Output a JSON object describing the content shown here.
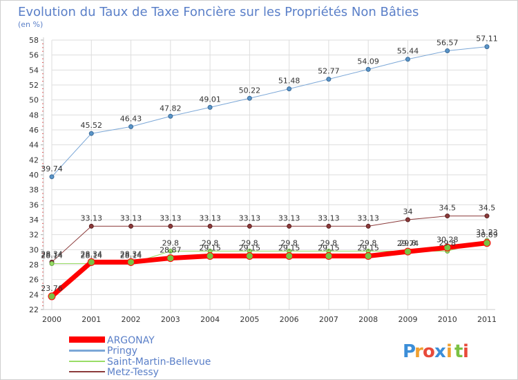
{
  "chart_data": {
    "type": "line",
    "title": "Evolution du Taux de Taxe Foncière sur les Propriétés Non Bâties",
    "subtitle": "(en %)",
    "xlabel": "",
    "ylabel": "",
    "ylim": [
      22,
      58
    ],
    "ytick_step": 2,
    "yticks": [
      "22",
      "24",
      "26",
      "28",
      "30",
      "32",
      "34",
      "36",
      "38",
      "40",
      "42",
      "44",
      "46",
      "48",
      "50",
      "52",
      "54",
      "56",
      "58"
    ],
    "categories": [
      "2000",
      "2001",
      "2002",
      "2003",
      "2004",
      "2005",
      "2006",
      "2007",
      "2008",
      "2009",
      "2010",
      "2011"
    ],
    "grid": true,
    "legend_position": "bottom-left",
    "series": [
      {
        "name": "ARGONAY",
        "color": "#ff0000",
        "values": [
          23.76,
          28.34,
          28.34,
          28.87,
          29.15,
          29.15,
          29.15,
          29.15,
          29.15,
          29.74,
          30.28,
          30.89
        ],
        "labels": [
          "23.76",
          "28.34",
          "28.34",
          "28.87",
          "29.15",
          "29.15",
          "29.15",
          "29.15",
          "29.15",
          "29.74",
          "30.28",
          "30.89"
        ]
      },
      {
        "name": "Pringy",
        "color": "#7ba7d7",
        "values": [
          39.74,
          45.52,
          46.43,
          47.82,
          49.01,
          50.22,
          51.48,
          52.77,
          54.09,
          55.44,
          56.57,
          57.11
        ],
        "labels": [
          "39.74",
          "45.52",
          "46.43",
          "47.82",
          "49.01",
          "50.22",
          "51.48",
          "52.77",
          "54.09",
          "55.44",
          "56.57",
          "57.11"
        ]
      },
      {
        "name": "Saint-Martin-Bellevue",
        "color": "#99dd66",
        "values": [
          28.14,
          28.14,
          28.14,
          29.8,
          29.8,
          29.8,
          29.8,
          29.8,
          29.8,
          29.8,
          29.8,
          31.23
        ],
        "labels": [
          "28.14",
          "28.14",
          "28.14",
          "29.8",
          "29.8",
          "29.8",
          "29.8",
          "29.8",
          "29.8",
          "29.8",
          "29.8",
          "31.23"
        ]
      },
      {
        "name": "Metz-Tessy",
        "color": "#8b3a3a",
        "values": [
          28.34,
          33.13,
          33.13,
          33.13,
          33.13,
          33.13,
          33.13,
          33.13,
          33.13,
          34.0,
          34.5,
          34.5
        ],
        "labels": [
          "28.34",
          "33.13",
          "33.13",
          "33.13",
          "33.13",
          "33.13",
          "33.13",
          "33.13",
          "33.13",
          "34",
          "34.5",
          "34.5"
        ]
      }
    ]
  },
  "legend": {
    "items": [
      "ARGONAY",
      "Pringy",
      "Saint-Martin-Bellevue",
      "Metz-Tessy"
    ]
  },
  "logo": {
    "letters": [
      "P",
      "r",
      "o",
      "x",
      "i",
      "t",
      "i"
    ],
    "letter_colors": [
      "#3b8ed8",
      "#f0a030",
      "#e84a3a",
      "#3b8ed8",
      "#f0a030",
      "#7ac143",
      "#e84a3a"
    ]
  }
}
